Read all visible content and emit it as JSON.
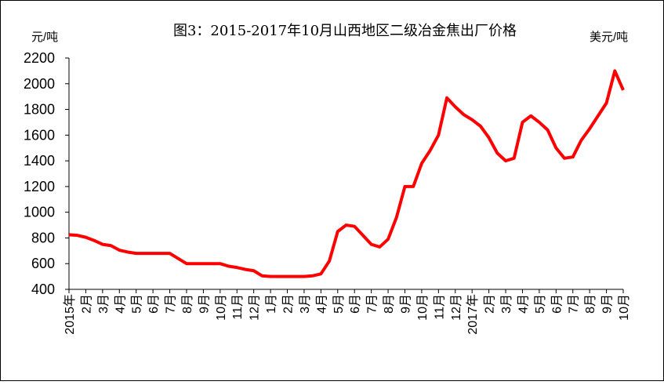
{
  "chart_data": {
    "type": "line",
    "title": "图3：2015-2017年10月山西地区二级冶金焦出厂价格",
    "y_unit_left": "元/吨",
    "y_unit_right": "美元/吨",
    "categories": [
      "2015年",
      null,
      "2月",
      null,
      "3月",
      null,
      "4月",
      null,
      "5月",
      null,
      "6月",
      null,
      "7月",
      null,
      "8月",
      null,
      "9月",
      null,
      "10月",
      null,
      "11月",
      null,
      "12月",
      null,
      "1月",
      null,
      "2月",
      null,
      "3月",
      null,
      "4月",
      null,
      "5月",
      null,
      "6月",
      null,
      "7月",
      null,
      "8月",
      null,
      "9月",
      null,
      "10月",
      null,
      "11月",
      null,
      "12月",
      null,
      "2017年",
      null,
      "2月",
      null,
      "3月",
      null,
      "4月",
      null,
      "5月",
      null,
      "6月",
      null,
      "7月",
      null,
      "8月",
      null,
      "9月",
      null,
      "10月"
    ],
    "series": [
      {
        "name": "二级冶金焦出厂价格",
        "color": "#ff0000",
        "values": [
          825,
          820,
          805,
          780,
          750,
          740,
          705,
          690,
          680,
          680,
          680,
          680,
          680,
          640,
          600,
          600,
          600,
          600,
          600,
          580,
          570,
          555,
          545,
          505,
          500,
          500,
          500,
          500,
          500,
          505,
          520,
          620,
          850,
          900,
          890,
          820,
          750,
          730,
          790,
          960,
          1200,
          1200,
          1380,
          1480,
          1600,
          1890,
          1820,
          1760,
          1720,
          1670,
          1580,
          1460,
          1400,
          1420,
          1700,
          1750,
          1700,
          1640,
          1500,
          1420,
          1430,
          1560,
          1650,
          1750,
          1850,
          2100,
          1950
        ]
      }
    ],
    "ylim": [
      400,
      2200
    ],
    "yticks": [
      400,
      600,
      800,
      1000,
      1200,
      1400,
      1600,
      1800,
      2000,
      2200
    ]
  }
}
